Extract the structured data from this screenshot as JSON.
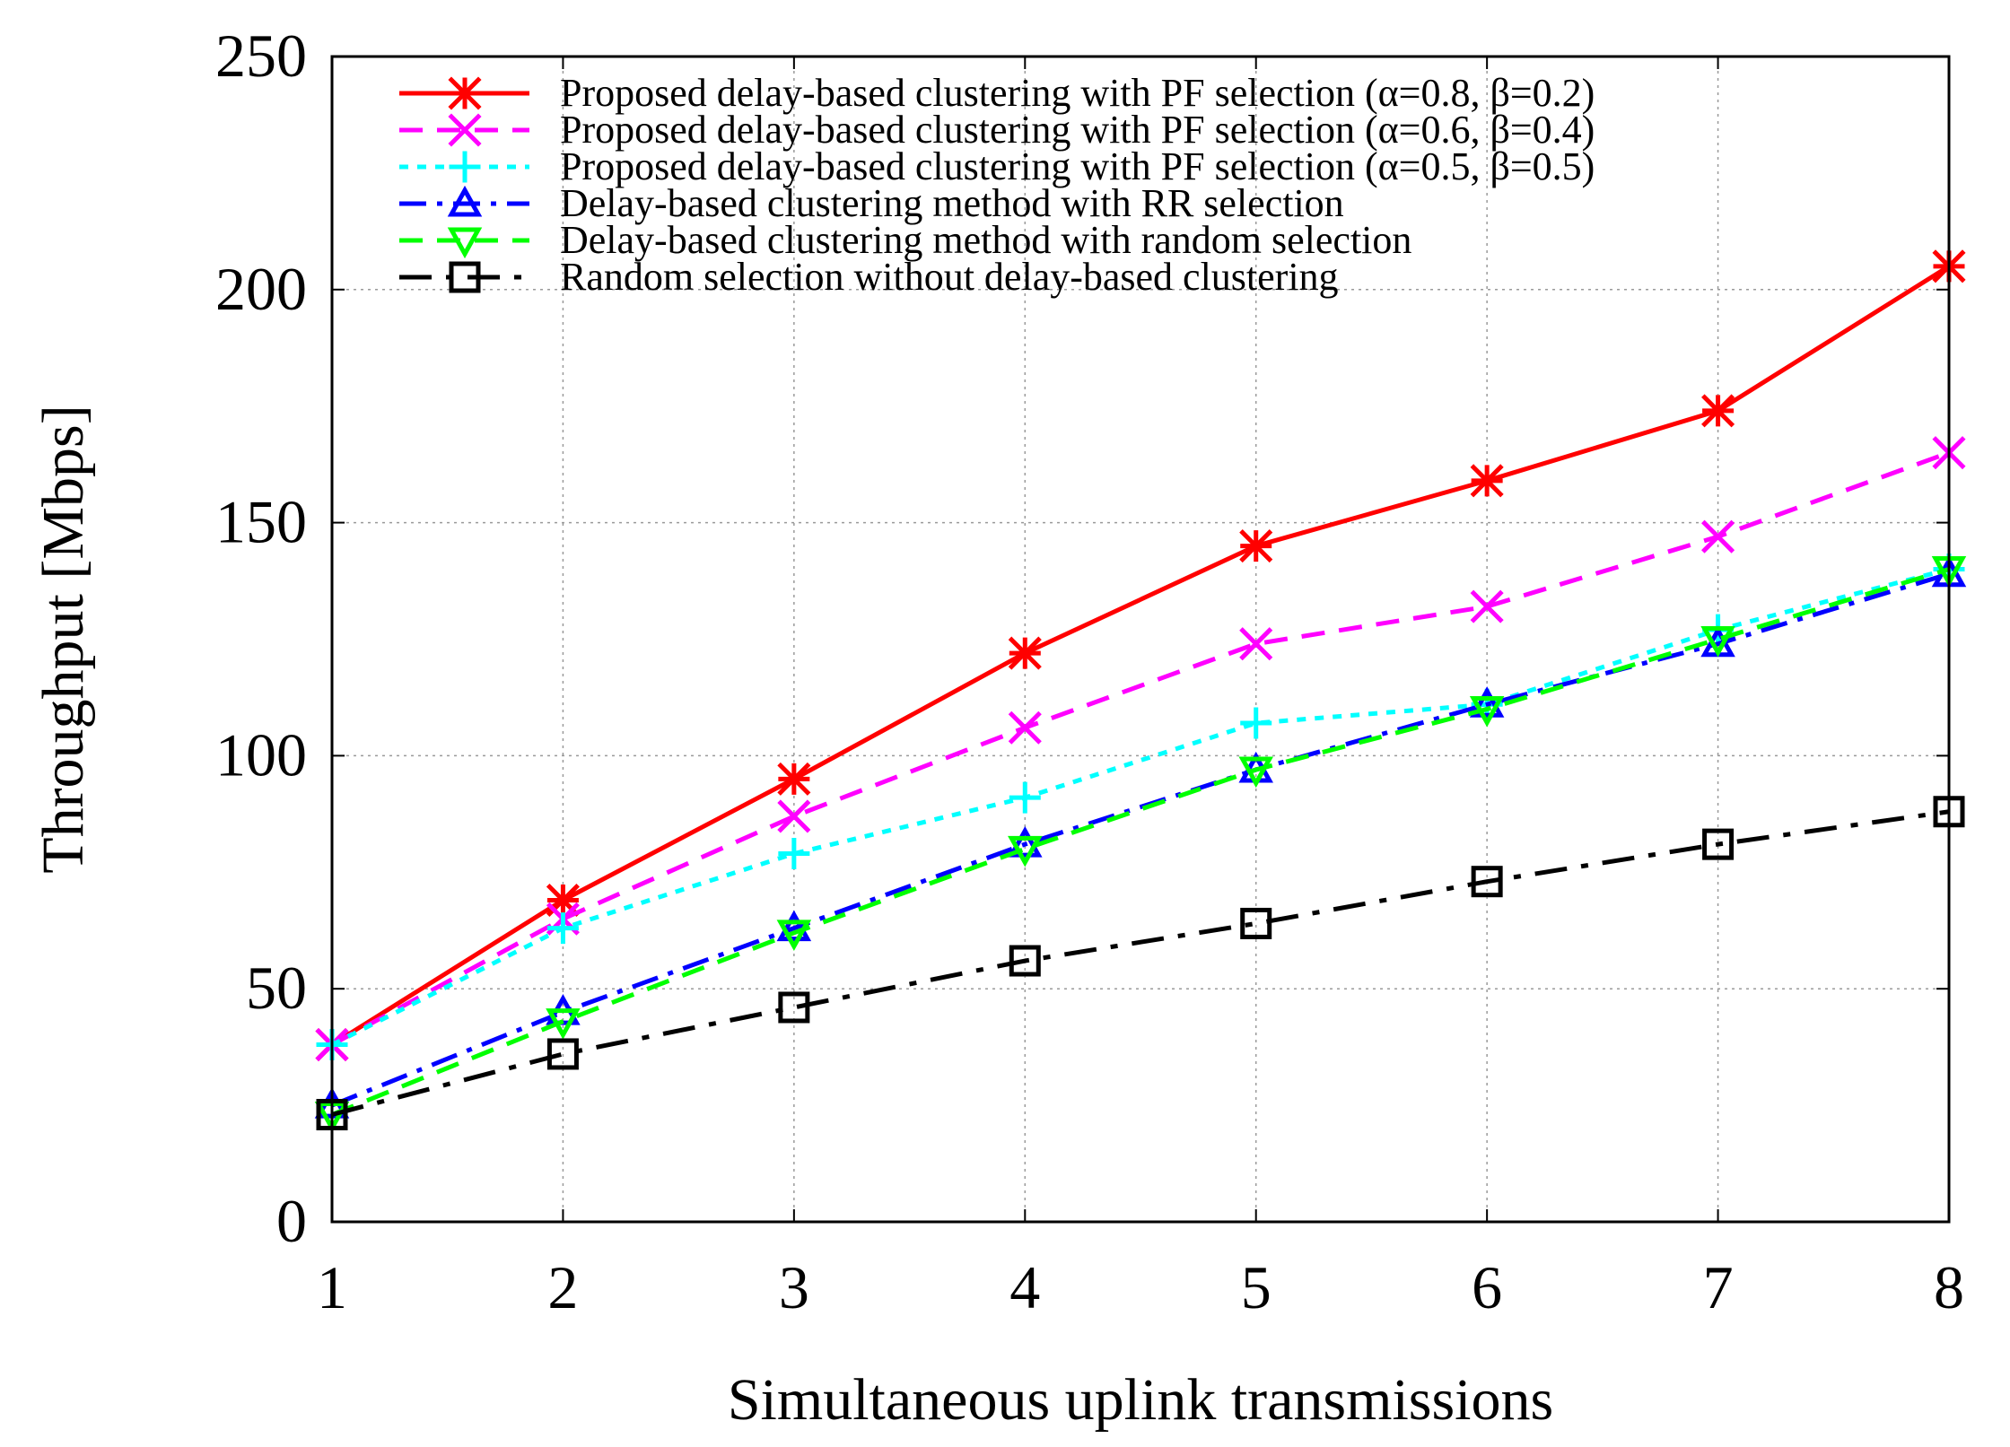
{
  "chart_data": {
    "type": "line",
    "title": "",
    "xlabel": "Simultaneous uplink transmissions",
    "ylabel": "Throughput [Mbps]",
    "x": [
      1,
      2,
      3,
      4,
      5,
      6,
      7,
      8
    ],
    "xlim": [
      1,
      8
    ],
    "ylim": [
      0,
      250
    ],
    "xticks": [
      "1",
      "2",
      "3",
      "4",
      "5",
      "6",
      "7",
      "8"
    ],
    "yticks": [
      "0",
      "50",
      "100",
      "150",
      "200",
      "250"
    ],
    "ytick_values": [
      0,
      50,
      100,
      150,
      200,
      250
    ],
    "grid": true,
    "legend_position": "top-left",
    "series": [
      {
        "name": "Proposed delay-based clustering with PF selection (α=0.8, β=0.2)",
        "color": "#ff0000",
        "marker": "asterisk",
        "dash": "solid",
        "values": [
          38,
          69,
          95,
          122,
          145,
          159,
          174,
          205
        ]
      },
      {
        "name": "Proposed delay-based clustering with PF selection (α=0.6, β=0.4)",
        "color": "#ff00ff",
        "marker": "x",
        "dash": "dash",
        "values": [
          38,
          65,
          87,
          106,
          124,
          132,
          147,
          165
        ]
      },
      {
        "name": "Proposed delay-based clustering with PF selection (α=0.5, β=0.5)",
        "color": "#00ffff",
        "marker": "plus",
        "dash": "dot",
        "values": [
          38,
          63,
          79,
          91,
          107,
          111,
          127,
          140
        ]
      },
      {
        "name": "Delay-based clustering method with RR selection",
        "color": "#0000ff",
        "marker": "triangle-up",
        "dash": "dashdot",
        "values": [
          25,
          45,
          63,
          81,
          97,
          111,
          124,
          139
        ]
      },
      {
        "name": "Delay-based clustering method with random selection",
        "color": "#00ff00",
        "marker": "triangle-down",
        "dash": "dash",
        "values": [
          23,
          43,
          62,
          80,
          97,
          110,
          125,
          140
        ]
      },
      {
        "name": "Random selection without delay-based clustering",
        "color": "#000000",
        "marker": "square",
        "dash": "dashdot-long",
        "values": [
          23,
          36,
          46,
          56,
          64,
          73,
          81,
          88
        ]
      }
    ]
  }
}
